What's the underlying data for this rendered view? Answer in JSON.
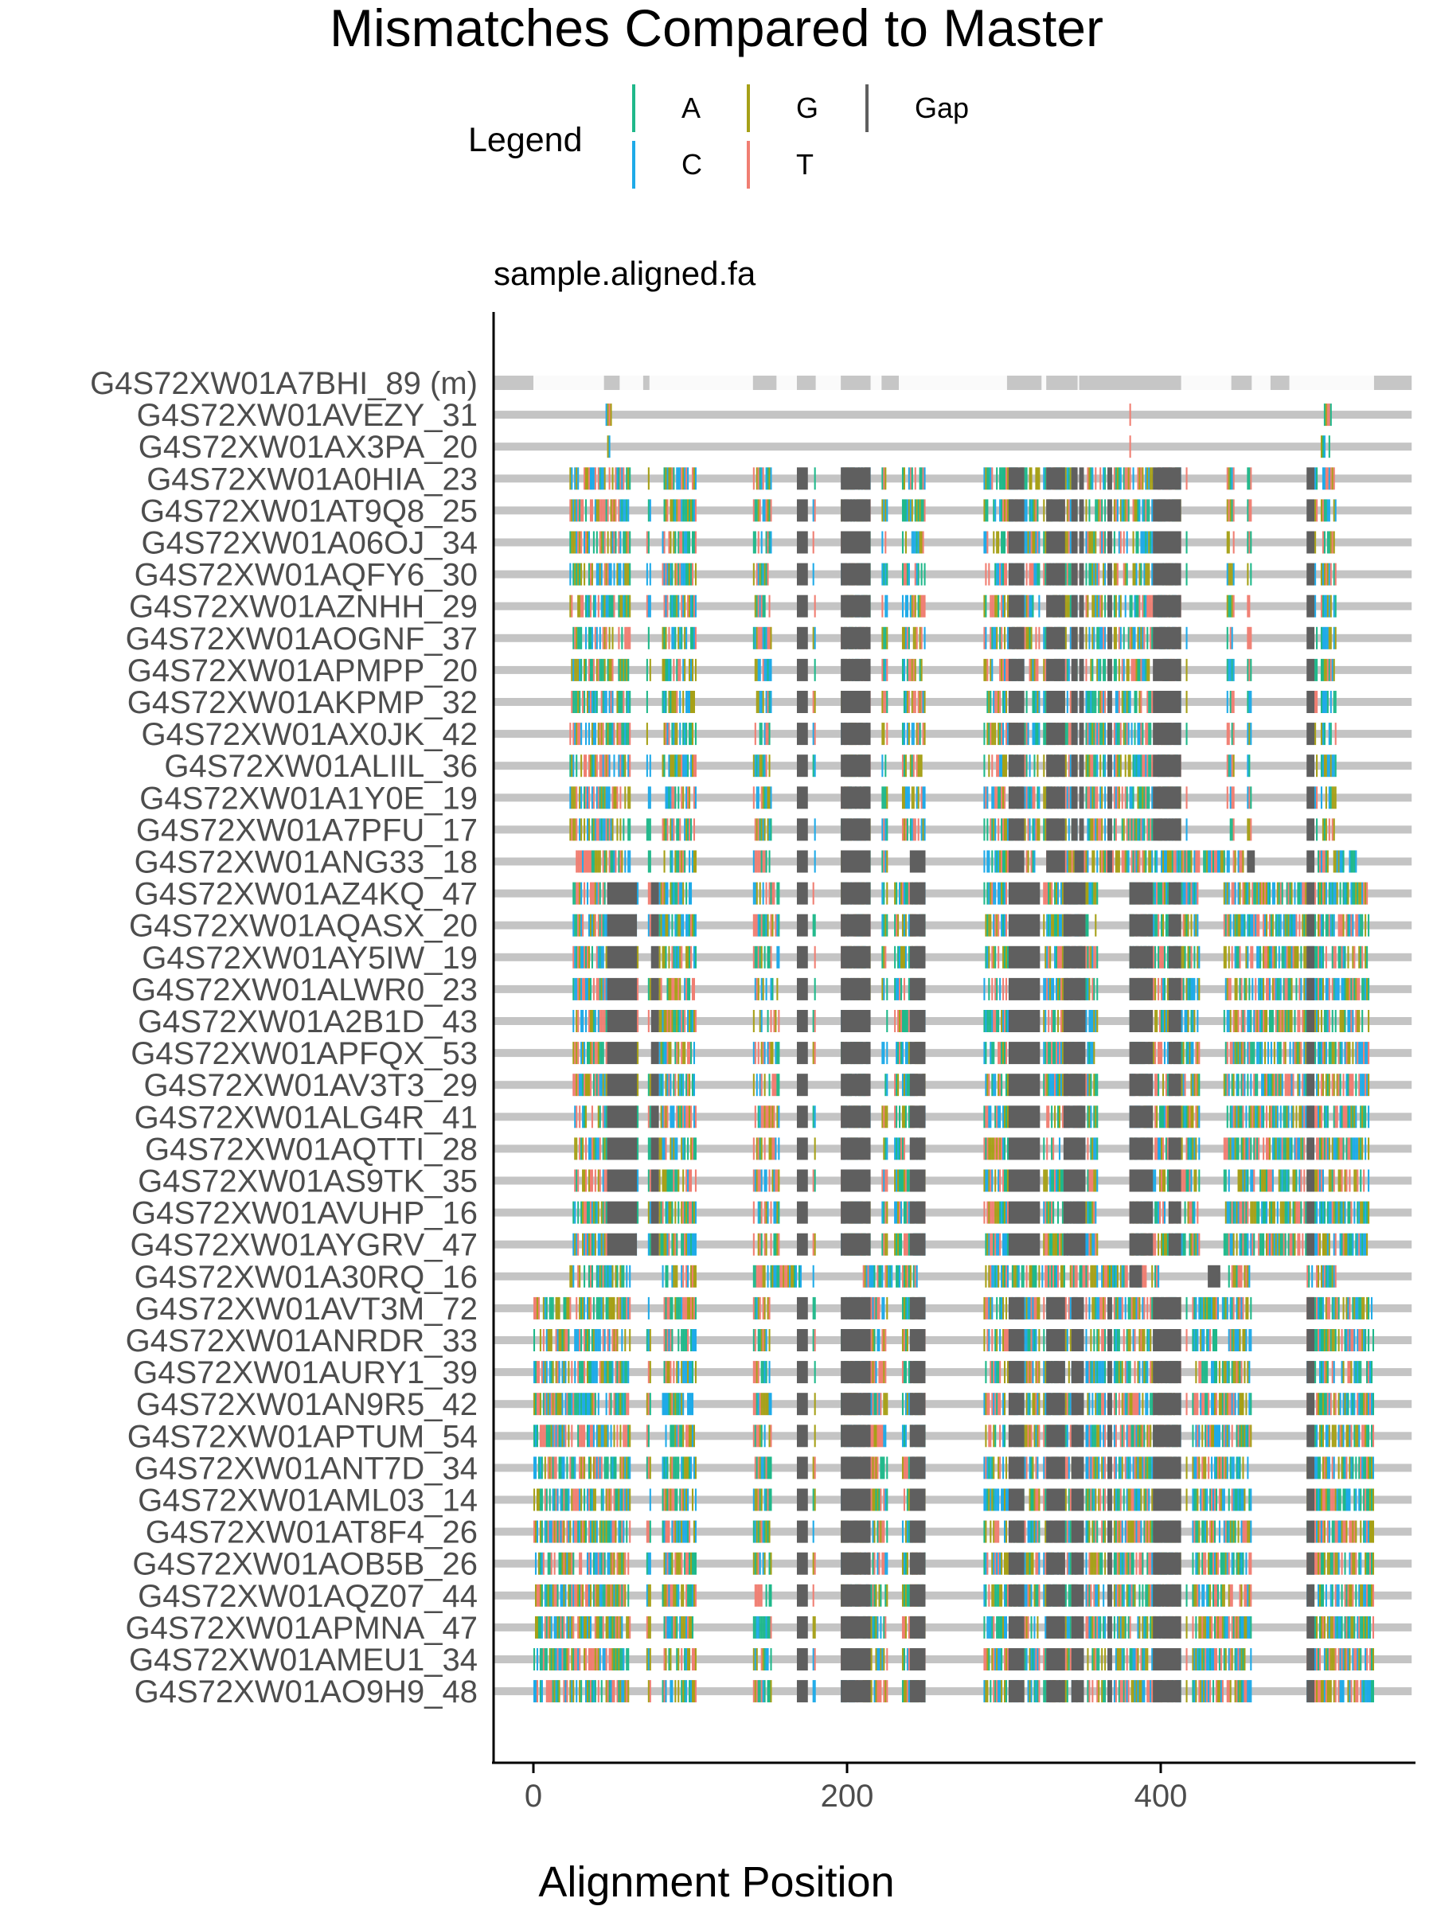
{
  "chart_data": {
    "type": "alignment-mismatch",
    "title": "Mismatches Compared to Master",
    "panel_title": "sample.aligned.fa",
    "xlabel": "Alignment Position",
    "x_ticks": [
      0,
      200,
      400
    ],
    "xlim": [
      -25,
      560
    ],
    "alignment_length": 560,
    "legend": {
      "title": "Legend",
      "items": [
        {
          "label": "A",
          "color": "#1fb88a"
        },
        {
          "label": "G",
          "color": "#a6a017"
        },
        {
          "label": "Gap",
          "color": "#5f5f5f"
        },
        {
          "label": "C",
          "color": "#1eaae8"
        },
        {
          "label": "T",
          "color": "#f07e72"
        }
      ]
    },
    "colors": {
      "A": "#1fb88a",
      "C": "#1eaae8",
      "G": "#a6a017",
      "T": "#f07e72",
      "Gap": "#5f5f5f",
      "background": "#c4c4c4",
      "master_fill": "#fafafa",
      "master_gap": "#c6c6c6",
      "text": "#4d4d4d"
    },
    "master": {
      "label": "G4S72XW01A7BHI_89 (m)",
      "gap_blocks": [
        [
          -25,
          0
        ],
        [
          45,
          55
        ],
        [
          70,
          74
        ],
        [
          140,
          155
        ],
        [
          168,
          180
        ],
        [
          196,
          215
        ],
        [
          222,
          233
        ],
        [
          302,
          324
        ],
        [
          327,
          347
        ],
        [
          348,
          413
        ],
        [
          445,
          458
        ],
        [
          470,
          482
        ],
        [
          536,
          560
        ]
      ]
    },
    "sequences": [
      {
        "label": "G4S72XW01AVEZY_31",
        "group": "short"
      },
      {
        "label": "G4S72XW01AX3PA_20",
        "group": "short2"
      },
      {
        "label": "G4S72XW01A0HIA_23",
        "group": "A"
      },
      {
        "label": "G4S72XW01AT9Q8_25",
        "group": "A"
      },
      {
        "label": "G4S72XW01A06OJ_34",
        "group": "A"
      },
      {
        "label": "G4S72XW01AQFY6_30",
        "group": "A"
      },
      {
        "label": "G4S72XW01AZNHH_29",
        "group": "A"
      },
      {
        "label": "G4S72XW01AOGNF_37",
        "group": "A"
      },
      {
        "label": "G4S72XW01APMPP_20",
        "group": "A"
      },
      {
        "label": "G4S72XW01AKPMP_32",
        "group": "A"
      },
      {
        "label": "G4S72XW01AX0JK_42",
        "group": "A"
      },
      {
        "label": "G4S72XW01ALIIL_36",
        "group": "A"
      },
      {
        "label": "G4S72XW01A1Y0E_19",
        "group": "A"
      },
      {
        "label": "G4S72XW01A7PFU_17",
        "group": "A"
      },
      {
        "label": "G4S72XW01ANG33_18",
        "group": "B0"
      },
      {
        "label": "G4S72XW01AZ4KQ_47",
        "group": "B"
      },
      {
        "label": "G4S72XW01AQASX_20",
        "group": "B"
      },
      {
        "label": "G4S72XW01AY5IW_19",
        "group": "B"
      },
      {
        "label": "G4S72XW01ALWR0_23",
        "group": "B"
      },
      {
        "label": "G4S72XW01A2B1D_43",
        "group": "B"
      },
      {
        "label": "G4S72XW01APFQX_53",
        "group": "B"
      },
      {
        "label": "G4S72XW01AV3T3_29",
        "group": "B"
      },
      {
        "label": "G4S72XW01ALG4R_41",
        "group": "B"
      },
      {
        "label": "G4S72XW01AQTTI_28",
        "group": "B"
      },
      {
        "label": "G4S72XW01AS9TK_35",
        "group": "B"
      },
      {
        "label": "G4S72XW01AVUHP_16",
        "group": "B"
      },
      {
        "label": "G4S72XW01AYGRV_47",
        "group": "B"
      },
      {
        "label": "G4S72XW01A30RQ_16",
        "group": "C"
      },
      {
        "label": "G4S72XW01AVT3M_72",
        "group": "D"
      },
      {
        "label": "G4S72XW01ANRDR_33",
        "group": "D"
      },
      {
        "label": "G4S72XW01AURY1_39",
        "group": "D"
      },
      {
        "label": "G4S72XW01AN9R5_42",
        "group": "D"
      },
      {
        "label": "G4S72XW01APTUM_54",
        "group": "D"
      },
      {
        "label": "G4S72XW01ANT7D_34",
        "group": "D"
      },
      {
        "label": "G4S72XW01AML03_14",
        "group": "D"
      },
      {
        "label": "G4S72XW01AT8F4_26",
        "group": "D"
      },
      {
        "label": "G4S72XW01AOB5B_26",
        "group": "D"
      },
      {
        "label": "G4S72XW01AQZ07_44",
        "group": "D"
      },
      {
        "label": "G4S72XW01APMNA_47",
        "group": "D"
      },
      {
        "label": "G4S72XW01AMEU1_34",
        "group": "D"
      },
      {
        "label": "G4S72XW01AO9H9_48",
        "group": "D"
      }
    ],
    "group_profiles": {
      "short": {
        "mismatch_regions": [
          [
            46,
            50
          ],
          [
            380,
            381
          ],
          [
            503,
            510
          ]
        ],
        "gap_regions": []
      },
      "short2": {
        "mismatch_regions": [
          [
            47,
            49
          ],
          [
            380,
            381
          ],
          [
            502,
            508
          ]
        ],
        "gap_regions": []
      },
      "A": {
        "mismatch_regions": [
          [
            23,
            62
          ],
          [
            72,
            75
          ],
          [
            82,
            104
          ],
          [
            140,
            152
          ],
          [
            178,
            180
          ],
          [
            196,
            215
          ],
          [
            222,
            226
          ],
          [
            235,
            250
          ],
          [
            287,
            323
          ],
          [
            325,
            347
          ],
          [
            352,
            365
          ],
          [
            370,
            395
          ],
          [
            398,
            413
          ],
          [
            416,
            417
          ],
          [
            442,
            447
          ],
          [
            455,
            458
          ],
          [
            498,
            500
          ],
          [
            502,
            512
          ]
        ],
        "gap_regions": [
          [
            168,
            175
          ],
          [
            196,
            215
          ],
          [
            303,
            313
          ],
          [
            327,
            339
          ],
          [
            343,
            347
          ],
          [
            348,
            351
          ],
          [
            366,
            369
          ],
          [
            395,
            413
          ],
          [
            493,
            498
          ]
        ]
      },
      "B0": {
        "mismatch_regions": [
          [
            27,
            62
          ],
          [
            72,
            75
          ],
          [
            82,
            104
          ],
          [
            140,
            152
          ],
          [
            178,
            180
          ],
          [
            196,
            215
          ],
          [
            222,
            226
          ],
          [
            287,
            323
          ],
          [
            327,
            455
          ],
          [
            500,
            525
          ]
        ],
        "gap_regions": [
          [
            168,
            175
          ],
          [
            196,
            215
          ],
          [
            240,
            250
          ],
          [
            303,
            313
          ],
          [
            327,
            339
          ],
          [
            345,
            351
          ],
          [
            366,
            369
          ],
          [
            455,
            460
          ],
          [
            493,
            498
          ]
        ]
      },
      "B": {
        "mismatch_regions": [
          [
            25,
            47
          ],
          [
            65,
            67
          ],
          [
            73,
            75
          ],
          [
            80,
            104
          ],
          [
            140,
            157
          ],
          [
            178,
            180
          ],
          [
            196,
            215
          ],
          [
            222,
            226
          ],
          [
            230,
            250
          ],
          [
            287,
            303
          ],
          [
            325,
            360
          ],
          [
            380,
            425
          ],
          [
            440,
            533
          ]
        ],
        "gap_regions": [
          [
            47,
            66
          ],
          [
            75,
            80
          ],
          [
            168,
            175
          ],
          [
            196,
            215
          ],
          [
            240,
            250
          ],
          [
            303,
            323
          ],
          [
            338,
            352
          ],
          [
            380,
            395
          ],
          [
            405,
            413
          ],
          [
            493,
            498
          ]
        ]
      },
      "C": {
        "mismatch_regions": [
          [
            23,
            62
          ],
          [
            82,
            104
          ],
          [
            140,
            172
          ],
          [
            178,
            180
          ],
          [
            208,
            246
          ],
          [
            287,
            400
          ],
          [
            440,
            458
          ],
          [
            493,
            512
          ]
        ],
        "gap_regions": [
          [
            380,
            388
          ],
          [
            430,
            438
          ]
        ]
      },
      "D": {
        "mismatch_regions": [
          [
            0,
            62
          ],
          [
            72,
            75
          ],
          [
            82,
            104
          ],
          [
            140,
            152
          ],
          [
            178,
            180
          ],
          [
            196,
            226
          ],
          [
            235,
            250
          ],
          [
            287,
            323
          ],
          [
            325,
            347
          ],
          [
            352,
            365
          ],
          [
            370,
            413
          ],
          [
            416,
            417
          ],
          [
            420,
            458
          ],
          [
            493,
            536
          ]
        ],
        "gap_regions": [
          [
            168,
            175
          ],
          [
            196,
            215
          ],
          [
            240,
            250
          ],
          [
            303,
            313
          ],
          [
            327,
            339
          ],
          [
            343,
            351
          ],
          [
            366,
            369
          ],
          [
            395,
            413
          ],
          [
            493,
            498
          ]
        ]
      }
    }
  }
}
